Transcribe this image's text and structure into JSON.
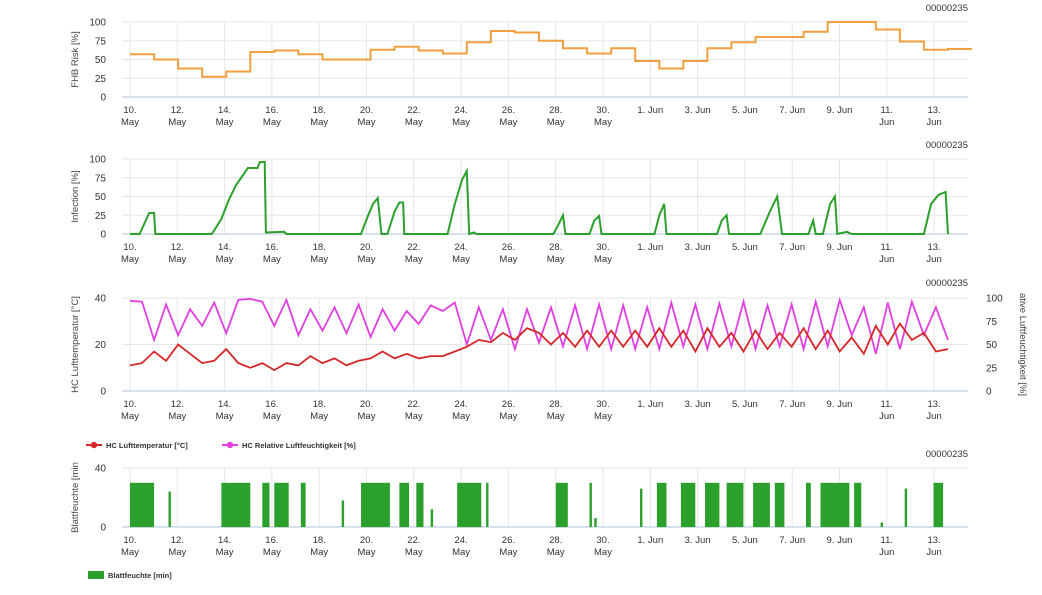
{
  "station_id": "00000235",
  "x_tick_labels": [
    [
      "10.",
      "May"
    ],
    [
      "12.",
      "May"
    ],
    [
      "14.",
      "May"
    ],
    [
      "16.",
      "May"
    ],
    [
      "18.",
      "May"
    ],
    [
      "20.",
      "May"
    ],
    [
      "22.",
      "May"
    ],
    [
      "24.",
      "May"
    ],
    [
      "26.",
      "May"
    ],
    [
      "28.",
      "May"
    ],
    [
      "30.",
      "May"
    ],
    [
      "1. Jun",
      ""
    ],
    [
      "3. Jun",
      ""
    ],
    [
      "5. Jun",
      ""
    ],
    [
      "7. Jun",
      ""
    ],
    [
      "9. Jun",
      ""
    ],
    [
      "11.",
      "Jun"
    ],
    [
      "13.",
      "Jun"
    ]
  ],
  "colors": {
    "risk": "#f0a040",
    "infection": "#2ca02c",
    "temperature": "#d62728",
    "humidity": "#e040e0",
    "leaf_wetness": "#2ca02c",
    "grid": "#e6e6e6",
    "axis": "#c0d0e0"
  },
  "chart_data": [
    {
      "type": "line",
      "step": true,
      "ylabel": "FHB Risk [%]",
      "ylim": [
        0,
        100
      ],
      "yticks": [
        0,
        25,
        50,
        75,
        100
      ],
      "x": [
        10,
        11,
        12,
        13,
        14,
        15,
        16,
        17,
        18,
        19,
        20,
        21,
        22,
        23,
        24,
        25,
        26,
        27,
        28,
        29,
        30,
        31,
        32,
        33,
        34,
        35,
        36,
        37,
        38,
        39,
        40,
        41,
        42,
        43,
        44,
        45
      ],
      "series": [
        {
          "values": [
            57,
            50,
            38,
            27,
            34,
            60,
            62,
            57,
            50,
            50,
            63,
            67,
            62,
            58,
            73,
            88,
            86,
            75,
            65,
            58,
            65,
            48,
            38,
            48,
            65,
            73,
            80,
            80,
            87,
            100,
            100,
            90,
            74,
            63,
            64,
            64
          ]
        }
      ]
    },
    {
      "type": "line",
      "ylabel": "Infection [%]",
      "ylim": [
        0,
        100
      ],
      "yticks": [
        0,
        25,
        50,
        75,
        100
      ],
      "points": [
        [
          10,
          0
        ],
        [
          10.4,
          0
        ],
        [
          10.8,
          28
        ],
        [
          11,
          28
        ],
        [
          11.05,
          0
        ],
        [
          13.4,
          0
        ],
        [
          13.8,
          20
        ],
        [
          14.1,
          45
        ],
        [
          14.4,
          65
        ],
        [
          14.9,
          88
        ],
        [
          15.3,
          88
        ],
        [
          15.4,
          96
        ],
        [
          15.6,
          96
        ],
        [
          15.65,
          2
        ],
        [
          16.4,
          3
        ],
        [
          16.5,
          0
        ],
        [
          19.6,
          0
        ],
        [
          19.9,
          25
        ],
        [
          20.1,
          40
        ],
        [
          20.3,
          48
        ],
        [
          20.45,
          0
        ],
        [
          20.7,
          0
        ],
        [
          21,
          30
        ],
        [
          21.2,
          42
        ],
        [
          21.35,
          42
        ],
        [
          21.4,
          0
        ],
        [
          23.2,
          0
        ],
        [
          23.5,
          40
        ],
        [
          23.8,
          72
        ],
        [
          24,
          84
        ],
        [
          24.1,
          0
        ],
        [
          24.3,
          2
        ],
        [
          24.4,
          0
        ],
        [
          27.6,
          0
        ],
        [
          27.8,
          12
        ],
        [
          28,
          25
        ],
        [
          28.1,
          0
        ],
        [
          29.1,
          0
        ],
        [
          29.3,
          18
        ],
        [
          29.5,
          24
        ],
        [
          29.6,
          0
        ],
        [
          31.8,
          0
        ],
        [
          32,
          25
        ],
        [
          32.2,
          40
        ],
        [
          32.3,
          0
        ],
        [
          34.4,
          0
        ],
        [
          34.6,
          18
        ],
        [
          34.8,
          25
        ],
        [
          34.9,
          0
        ],
        [
          36.2,
          0
        ],
        [
          36.6,
          30
        ],
        [
          36.9,
          50
        ],
        [
          37.1,
          0
        ],
        [
          38.2,
          0
        ],
        [
          38.4,
          18
        ],
        [
          38.5,
          0
        ],
        [
          38.8,
          0
        ],
        [
          39.1,
          40
        ],
        [
          39.3,
          50
        ],
        [
          39.4,
          0
        ],
        [
          39.8,
          3
        ],
        [
          40,
          0
        ],
        [
          43,
          0
        ],
        [
          43.3,
          40
        ],
        [
          43.6,
          52
        ],
        [
          43.9,
          56
        ],
        [
          44,
          0
        ]
      ]
    },
    {
      "type": "line",
      "ylabel": "HC Lufttemperatur [°C]",
      "ylim": [
        0,
        40
      ],
      "yticks": [
        0,
        20,
        40
      ],
      "ylabel_right": "ative Luftfeuchtigkeit [%]",
      "ylim_right": [
        0,
        100
      ],
      "yticks_right": [
        0,
        25,
        50,
        75,
        100
      ],
      "legend": "below",
      "series": [
        {
          "name": "HC Lufttemperatur [°C]",
          "axis": "left",
          "points": [
            [
              10,
              11
            ],
            [
              10.5,
              12
            ],
            [
              11,
              17
            ],
            [
              11.5,
              13
            ],
            [
              12,
              20
            ],
            [
              12.5,
              16
            ],
            [
              13,
              12
            ],
            [
              13.5,
              13
            ],
            [
              14,
              18
            ],
            [
              14.5,
              12
            ],
            [
              15,
              10
            ],
            [
              15.5,
              12
            ],
            [
              16,
              9
            ],
            [
              16.5,
              12
            ],
            [
              17,
              11
            ],
            [
              17.5,
              15
            ],
            [
              18,
              12
            ],
            [
              18.5,
              14
            ],
            [
              19,
              11
            ],
            [
              19.5,
              13
            ],
            [
              20,
              14
            ],
            [
              20.5,
              17
            ],
            [
              21,
              14
            ],
            [
              21.5,
              16
            ],
            [
              22,
              14
            ],
            [
              22.5,
              15
            ],
            [
              23,
              15
            ],
            [
              23.5,
              17
            ],
            [
              24,
              19
            ],
            [
              24.5,
              22
            ],
            [
              25,
              21
            ],
            [
              25.5,
              25
            ],
            [
              26,
              22
            ],
            [
              26.5,
              27
            ],
            [
              27,
              25
            ],
            [
              27.5,
              20
            ],
            [
              28,
              25
            ],
            [
              28.5,
              19
            ],
            [
              29,
              26
            ],
            [
              29.5,
              19
            ],
            [
              30,
              26
            ],
            [
              30.5,
              19
            ],
            [
              31,
              26
            ],
            [
              31.5,
              19
            ],
            [
              32,
              27
            ],
            [
              32.5,
              19
            ],
            [
              33,
              26
            ],
            [
              33.5,
              17
            ],
            [
              34,
              27
            ],
            [
              34.5,
              19
            ],
            [
              35,
              25
            ],
            [
              35.5,
              17
            ],
            [
              36,
              26
            ],
            [
              36.5,
              18
            ],
            [
              37,
              25
            ],
            [
              37.5,
              19
            ],
            [
              38,
              27
            ],
            [
              38.5,
              18
            ],
            [
              39,
              26
            ],
            [
              39.5,
              17
            ],
            [
              40,
              23
            ],
            [
              40.5,
              16
            ],
            [
              41,
              28
            ],
            [
              41.5,
              20
            ],
            [
              42,
              29
            ],
            [
              42.5,
              22
            ],
            [
              43,
              25
            ],
            [
              43.5,
              17
            ],
            [
              44,
              18
            ]
          ]
        },
        {
          "name": "HC Relative Luftfeuchtigkeit [%]",
          "axis": "right",
          "points": [
            [
              10,
              97
            ],
            [
              10.5,
              96
            ],
            [
              11,
              55
            ],
            [
              11.5,
              93
            ],
            [
              12,
              60
            ],
            [
              12.5,
              88
            ],
            [
              13,
              70
            ],
            [
              13.5,
              95
            ],
            [
              14,
              62
            ],
            [
              14.5,
              98
            ],
            [
              15,
              99
            ],
            [
              15.5,
              96
            ],
            [
              16,
              70
            ],
            [
              16.5,
              98
            ],
            [
              17,
              60
            ],
            [
              17.5,
              88
            ],
            [
              18,
              65
            ],
            [
              18.5,
              90
            ],
            [
              19,
              62
            ],
            [
              19.5,
              93
            ],
            [
              20,
              58
            ],
            [
              20.5,
              88
            ],
            [
              21,
              65
            ],
            [
              21.5,
              86
            ],
            [
              22,
              72
            ],
            [
              22.5,
              92
            ],
            [
              23,
              86
            ],
            [
              23.5,
              95
            ],
            [
              24,
              50
            ],
            [
              24.5,
              90
            ],
            [
              25,
              55
            ],
            [
              25.5,
              88
            ],
            [
              26,
              45
            ],
            [
              26.5,
              88
            ],
            [
              27,
              52
            ],
            [
              27.5,
              90
            ],
            [
              28,
              48
            ],
            [
              28.5,
              92
            ],
            [
              29,
              45
            ],
            [
              29.5,
              93
            ],
            [
              30,
              45
            ],
            [
              30.5,
              92
            ],
            [
              31,
              45
            ],
            [
              31.5,
              90
            ],
            [
              32,
              45
            ],
            [
              32.5,
              95
            ],
            [
              33,
              48
            ],
            [
              33.5,
              93
            ],
            [
              34,
              45
            ],
            [
              34.5,
              94
            ],
            [
              35,
              48
            ],
            [
              35.5,
              96
            ],
            [
              36,
              45
            ],
            [
              36.5,
              92
            ],
            [
              37,
              48
            ],
            [
              37.5,
              93
            ],
            [
              38,
              45
            ],
            [
              38.5,
              96
            ],
            [
              39,
              48
            ],
            [
              39.5,
              98
            ],
            [
              40,
              60
            ],
            [
              40.5,
              90
            ],
            [
              41,
              40
            ],
            [
              41.5,
              95
            ],
            [
              42,
              45
            ],
            [
              42.5,
              96
            ],
            [
              43,
              60
            ],
            [
              43.5,
              90
            ],
            [
              44,
              55
            ]
          ]
        }
      ]
    },
    {
      "type": "bar",
      "ylabel": "Blattfeuchte [min",
      "ylim": [
        0,
        40
      ],
      "yticks": [
        0,
        40
      ],
      "legend": "below",
      "series": [
        {
          "name": "Blattfeuchte [min]",
          "intervals": [
            [
              10,
              11,
              30
            ],
            [
              11.6,
              11.7,
              24
            ],
            [
              13.8,
              15,
              30
            ],
            [
              15.5,
              15.8,
              30
            ],
            [
              16,
              16.6,
              30
            ],
            [
              17.1,
              17.3,
              30
            ],
            [
              18.8,
              18.9,
              18
            ],
            [
              19.6,
              20.8,
              30
            ],
            [
              21.2,
              21.6,
              30
            ],
            [
              21.9,
              22.2,
              30
            ],
            [
              22.5,
              22.6,
              12
            ],
            [
              23.6,
              24.6,
              30
            ],
            [
              24.8,
              24.9,
              30
            ],
            [
              27.7,
              28.2,
              30
            ],
            [
              29.1,
              29.2,
              30
            ],
            [
              29.3,
              29.4,
              6
            ],
            [
              31.2,
              31.3,
              26
            ],
            [
              31.9,
              32.3,
              30
            ],
            [
              32.9,
              33.5,
              30
            ],
            [
              33.9,
              34.5,
              30
            ],
            [
              34.8,
              35.5,
              30
            ],
            [
              35.9,
              36.6,
              30
            ],
            [
              36.8,
              37.2,
              30
            ],
            [
              38.1,
              38.3,
              30
            ],
            [
              38.7,
              39.9,
              30
            ],
            [
              40.1,
              40.4,
              30
            ],
            [
              41.2,
              41.3,
              3
            ],
            [
              42.2,
              42.3,
              26
            ],
            [
              43.4,
              43.8,
              30
            ]
          ]
        }
      ]
    }
  ]
}
